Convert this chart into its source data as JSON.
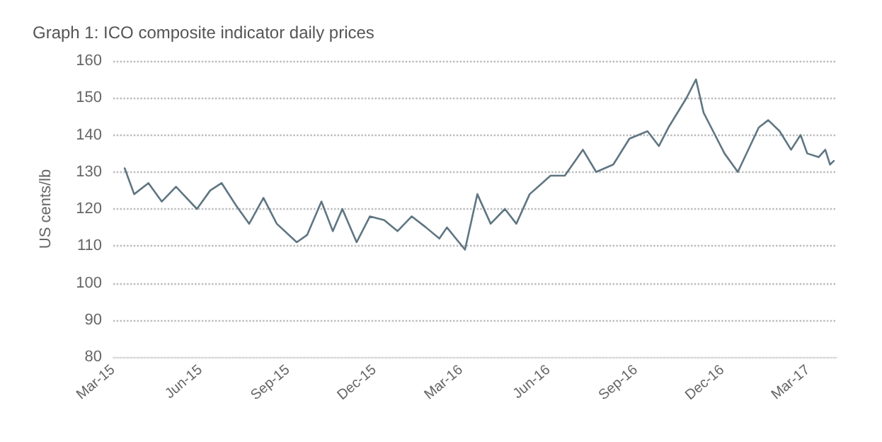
{
  "chart_data": {
    "type": "line",
    "title": "Graph 1: ICO composite indicator daily prices",
    "ylabel": "US cents/lb",
    "x": [
      "2015-03-13",
      "2015-03-23",
      "2015-04-07",
      "2015-04-21",
      "2015-05-06",
      "2015-05-28",
      "2015-06-11",
      "2015-06-23",
      "2015-07-08",
      "2015-07-22",
      "2015-08-06",
      "2015-08-20",
      "2015-09-10",
      "2015-09-21",
      "2015-10-06",
      "2015-10-18",
      "2015-10-28",
      "2015-11-12",
      "2015-11-26",
      "2015-12-11",
      "2015-12-25",
      "2016-01-09",
      "2016-01-24",
      "2016-02-07",
      "2016-02-15",
      "2016-03-05",
      "2016-03-18",
      "2016-04-01",
      "2016-04-16",
      "2016-04-28",
      "2016-05-12",
      "2016-06-03",
      "2016-06-18",
      "2016-07-07",
      "2016-07-21",
      "2016-08-08",
      "2016-08-25",
      "2016-09-13",
      "2016-09-25",
      "2016-10-05",
      "2016-10-24",
      "2016-11-03",
      "2016-11-11",
      "2016-11-21",
      "2016-12-03",
      "2016-12-17",
      "2017-01-08",
      "2017-01-18",
      "2017-01-30",
      "2017-02-11",
      "2017-02-21",
      "2017-02-28",
      "2017-03-12",
      "2017-03-19",
      "2017-03-24",
      "2017-03-28"
    ],
    "series": [
      {
        "color": "#5f7682",
        "values": [
          131,
          124,
          127,
          122,
          126,
          120,
          125,
          127,
          121,
          116,
          123,
          116,
          111,
          113,
          122,
          114,
          120,
          111,
          118,
          117,
          114,
          118,
          115,
          112,
          115,
          109,
          124,
          116,
          120,
          116,
          124,
          129,
          129,
          136,
          130,
          132,
          139,
          141,
          137,
          142,
          150,
          155,
          146,
          141,
          135,
          130,
          142,
          144,
          141,
          136,
          140,
          135,
          134,
          136,
          132,
          133
        ]
      }
    ],
    "xlim": [
      "2015-03-01",
      "2017-03-31"
    ],
    "xticks": [
      {
        "value": "2015-03-01",
        "label": "Mar-15"
      },
      {
        "value": "2015-06-01",
        "label": "Jun-15"
      },
      {
        "value": "2015-09-01",
        "label": "Sep-15"
      },
      {
        "value": "2015-12-01",
        "label": "Dec-15"
      },
      {
        "value": "2016-03-01",
        "label": "Mar-16"
      },
      {
        "value": "2016-06-01",
        "label": "Jun-16"
      },
      {
        "value": "2016-09-01",
        "label": "Sep-16"
      },
      {
        "value": "2016-12-01",
        "label": "Dec-16"
      },
      {
        "value": "2017-03-01",
        "label": "Mar-17"
      }
    ],
    "ylim": [
      80,
      160
    ],
    "yticks": [
      80,
      90,
      100,
      110,
      120,
      130,
      140,
      150,
      160
    ],
    "grid": "y",
    "marker": "none",
    "line_style": "solid"
  }
}
